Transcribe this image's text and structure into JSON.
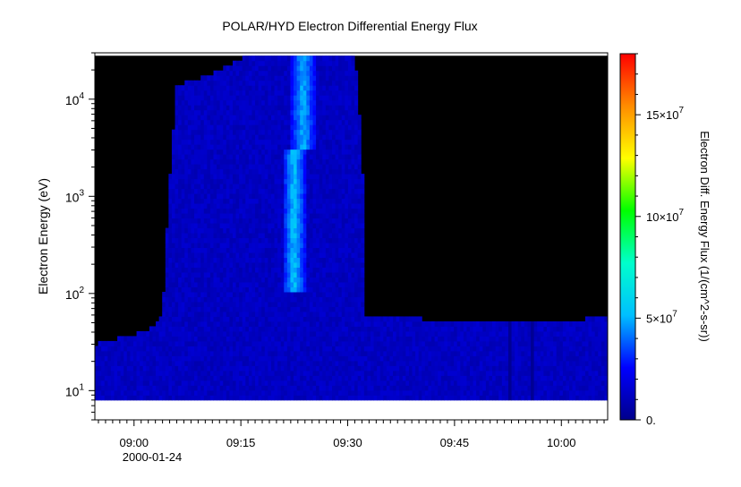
{
  "chart_data": {
    "type": "heatmap",
    "title": "POLAR/HYD  Electron Differential Energy Flux",
    "ylabel": "Electron Energy (eV)",
    "xlabel": "",
    "colorbar_label": "Electron Diff. Energy Flux (1/(cm^2-s-sr))",
    "x_scale": "time",
    "x_range": [
      "2000-01-24T08:54:30",
      "2000-01-24T10:06:30"
    ],
    "x_ticks": [
      "09:00",
      "09:15",
      "09:30",
      "09:45",
      "10:00"
    ],
    "x_tick_date": "2000-01-24",
    "y_scale": "log",
    "y_range": [
      5,
      30000
    ],
    "y_ticks": [
      {
        "value": 10,
        "base": "10",
        "exp": "1"
      },
      {
        "value": 100,
        "base": "10",
        "exp": "2"
      },
      {
        "value": 1000,
        "base": "10",
        "exp": "3"
      },
      {
        "value": 10000,
        "base": "10",
        "exp": "4"
      }
    ],
    "data_energy_range": [
      8,
      28000
    ],
    "colorbar_range": [
      0,
      180000000
    ],
    "colorbar_ticks": [
      {
        "value": 0,
        "label": "0."
      },
      {
        "value": 50000000,
        "label": "5×10",
        "exp": "7"
      },
      {
        "value": 100000000,
        "label": "10×10",
        "exp": "7"
      },
      {
        "value": 150000000,
        "label": "15×10",
        "exp": "7"
      }
    ],
    "colormap": [
      "#00008b",
      "#0000ff",
      "#00bfff",
      "#00ffcc",
      "#00ff00",
      "#ffff00",
      "#ff8c00",
      "#ff0000"
    ],
    "no_data_color": "#000000",
    "time_profile": [
      {
        "t": "08:54:30",
        "upper_eV": 30
      },
      {
        "t": "08:57:00",
        "upper_eV": 33
      },
      {
        "t": "09:00:00",
        "upper_eV": 38
      },
      {
        "t": "09:02:30",
        "upper_eV": 45
      },
      {
        "t": "09:04:00",
        "upper_eV": 60
      },
      {
        "t": "09:05:00",
        "upper_eV": 1500
      },
      {
        "t": "09:06:00",
        "upper_eV": 14000
      },
      {
        "t": "09:10:00",
        "upper_eV": 17000
      },
      {
        "t": "09:13:00",
        "upper_eV": 22000
      },
      {
        "t": "09:16:00",
        "upper_eV": 28000
      },
      {
        "t": "09:31:00",
        "upper_eV": 28000
      },
      {
        "t": "09:32:00",
        "upper_eV": 3000
      },
      {
        "t": "09:32:30",
        "upper_eV": 60
      },
      {
        "t": "09:40:00",
        "upper_eV": 55
      },
      {
        "t": "09:50:00",
        "upper_eV": 50
      },
      {
        "t": "10:00:00",
        "upper_eV": 50
      },
      {
        "t": "10:06:30",
        "upper_eV": 60
      }
    ],
    "intensity_features": [
      {
        "t_start": "09:21:00",
        "t_end": "09:24:00",
        "eV_min": 100,
        "eV_max": 3000,
        "flux_peak": 60000000
      },
      {
        "t_start": "09:22:00",
        "t_end": "09:25:30",
        "eV_min": 3000,
        "eV_max": 28000,
        "flux_peak": 55000000
      }
    ],
    "dark_stripes": [
      {
        "t_start": "09:52:30",
        "t_end": "09:53:00"
      },
      {
        "t_start": "09:55:30",
        "t_end": "09:56:00"
      }
    ]
  }
}
